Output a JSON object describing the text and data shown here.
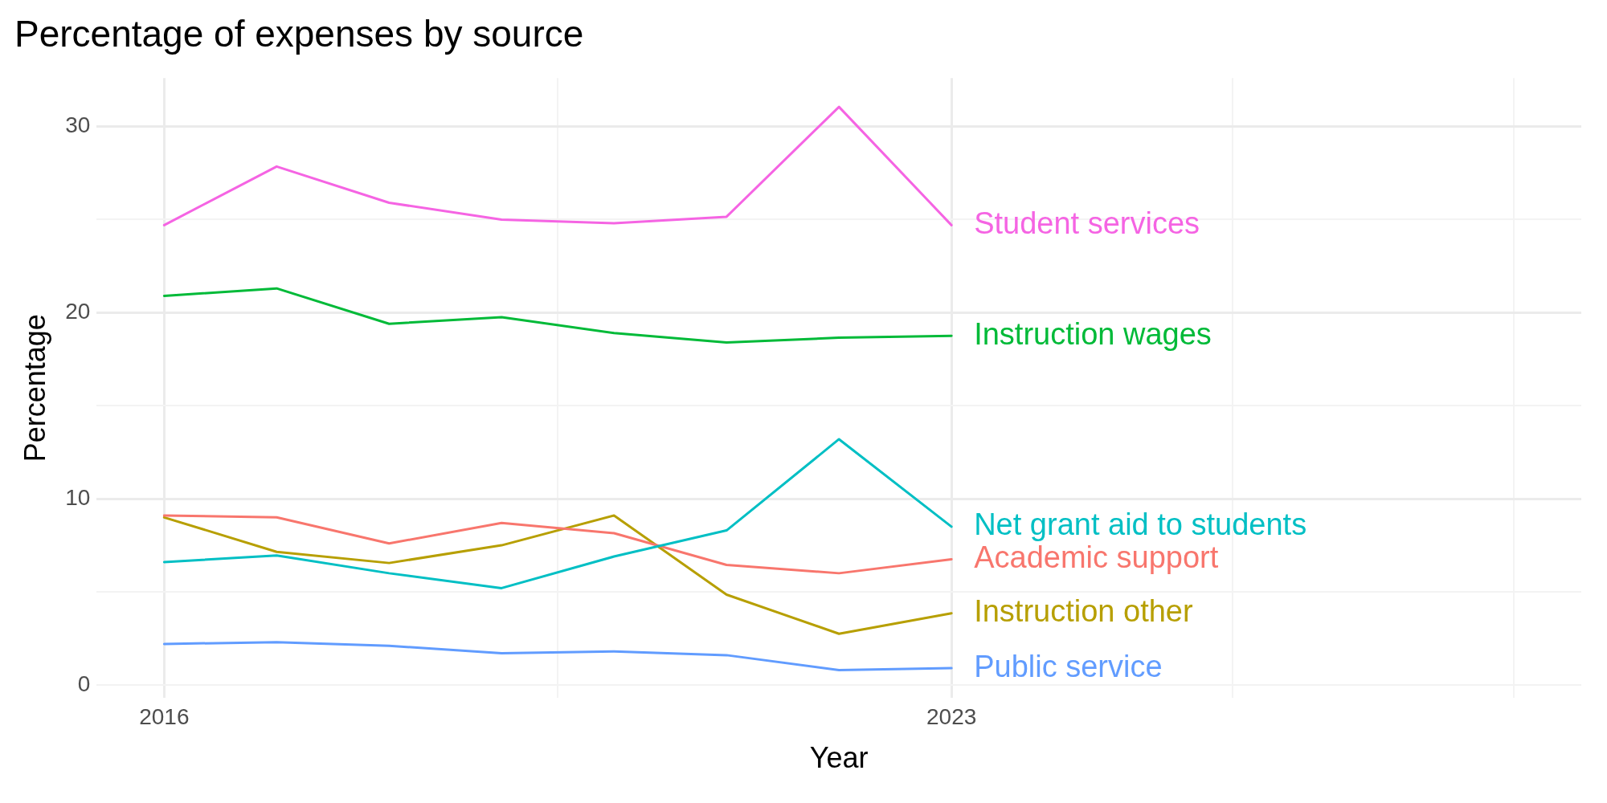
{
  "chart_data": {
    "type": "line",
    "title": "Percentage of expenses by source",
    "xlabel": "Year",
    "ylabel": "Percentage",
    "x": [
      2016,
      2017,
      2018,
      2019,
      2020,
      2021,
      2022,
      2023
    ],
    "xlim": [
      2015.4,
      2028.6
    ],
    "xticks": [
      2016,
      {
        "value": 2019.5,
        "label": null
      },
      2023,
      {
        "value": 2025.5,
        "label": null
      },
      {
        "value": 2028,
        "label": null
      }
    ],
    "ylim": [
      -0.7,
      32.6
    ],
    "yticks": [
      0,
      {
        "value": 5,
        "label": null
      },
      10,
      {
        "value": 15,
        "label": null
      },
      20,
      {
        "value": 25,
        "label": null
      },
      30
    ],
    "grid": true,
    "legend": false,
    "marker": "none",
    "line_style": "solid",
    "series": [
      {
        "name": "Student services",
        "color": "#f564e3",
        "values": [
          24.7,
          27.85,
          25.9,
          25.0,
          24.8,
          25.15,
          31.05,
          24.7
        ]
      },
      {
        "name": "Instruction wages",
        "color": "#00ba38",
        "values": [
          20.9,
          21.3,
          19.4,
          19.75,
          18.9,
          18.4,
          18.65,
          18.75
        ]
      },
      {
        "name": "Net grant aid to students",
        "color": "#00bfc4",
        "values": [
          6.6,
          6.95,
          6.0,
          5.2,
          6.9,
          8.3,
          13.2,
          8.5
        ]
      },
      {
        "name": "Academic support",
        "color": "#f8766d",
        "values": [
          9.1,
          9.0,
          7.6,
          8.7,
          8.15,
          6.45,
          6.0,
          6.75
        ]
      },
      {
        "name": "Instruction other",
        "color": "#b79f00",
        "values": [
          9.0,
          7.15,
          6.55,
          7.5,
          9.1,
          4.85,
          2.75,
          3.85
        ]
      },
      {
        "name": "Public service",
        "color": "#619cff",
        "values": [
          2.2,
          2.3,
          2.1,
          1.7,
          1.8,
          1.6,
          0.8,
          0.9
        ]
      }
    ]
  }
}
